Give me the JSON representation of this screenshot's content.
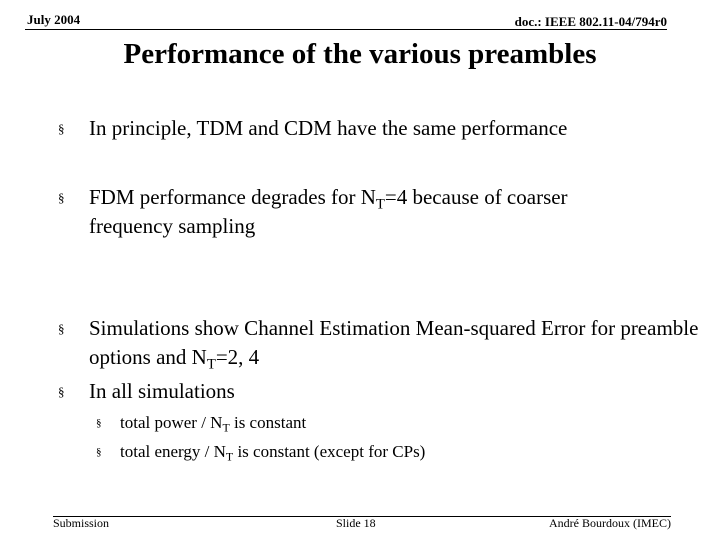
{
  "header": {
    "date": "July 2004",
    "doc_id": "doc.: IEEE 802.11-04/794r0"
  },
  "title": "Performance of the various preambles",
  "bullet_marker": "§",
  "bullets": {
    "b1": {
      "text": "In principle, TDM and CDM have the same performance"
    },
    "b2": {
      "pre": "FDM performance degrades for N",
      "sub": "T",
      "post": "=4 because of coarser frequency sampling"
    },
    "b3": {
      "pre": "Simulations show Channel Estimation Mean-squared Error for preamble options and N",
      "sub": "T",
      "post": "=2, 4"
    },
    "b4": {
      "text": "In all simulations",
      "subs": {
        "s1": {
          "pre": "total power / N",
          "sub": "T",
          "post": " is constant"
        },
        "s2": {
          "pre": "total energy / N",
          "sub": "T",
          "post": " is constant (except for CPs)"
        }
      }
    }
  },
  "footer": {
    "left": "Submission",
    "center": "Slide 18",
    "right": "André Bourdoux (IMEC)"
  }
}
